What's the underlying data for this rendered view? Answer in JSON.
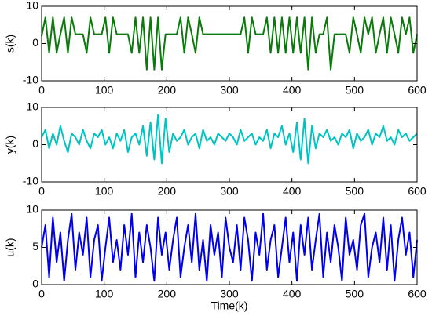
{
  "chart_data": [
    {
      "type": "line",
      "ylabel": "s(k)",
      "color": "#0a7a0a",
      "x": [
        0,
        6,
        12,
        18,
        24,
        30,
        36,
        42,
        48,
        54,
        60,
        66,
        72,
        78,
        84,
        90,
        96,
        102,
        108,
        114,
        120,
        126,
        132,
        138,
        144,
        150,
        156,
        162,
        168,
        174,
        180,
        186,
        192,
        198,
        204,
        210,
        216,
        222,
        228,
        234,
        240,
        246,
        252,
        258,
        264,
        270,
        276,
        282,
        288,
        294,
        300,
        306,
        312,
        318,
        324,
        330,
        336,
        342,
        348,
        354,
        360,
        366,
        372,
        378,
        384,
        390,
        396,
        402,
        408,
        414,
        420,
        426,
        432,
        438,
        444,
        450,
        456,
        462,
        468,
        474,
        480,
        486,
        492,
        498,
        504,
        510,
        516,
        522,
        528,
        534,
        540,
        546,
        552,
        558,
        564,
        570,
        576,
        582,
        588,
        594,
        600
      ],
      "values": [
        2,
        7,
        -2.5,
        7,
        -2.5,
        2.5,
        7,
        -2.5,
        7,
        2.5,
        2.5,
        2.5,
        -2.5,
        7,
        2.5,
        2.5,
        2.5,
        7,
        -2.5,
        7,
        2.5,
        2.5,
        2.5,
        2.5,
        -2.5,
        7,
        -2.5,
        7,
        -7,
        7,
        -7,
        7,
        -7,
        2.5,
        2.5,
        2.5,
        2.5,
        7,
        -2.5,
        7,
        2.5,
        -2.5,
        7,
        2.5,
        2.5,
        2.5,
        2.5,
        2.5,
        2.5,
        2.5,
        2.5,
        2.5,
        2.5,
        2.5,
        7,
        -2.5,
        7,
        2.5,
        2.5,
        2.5,
        7,
        -2.5,
        7,
        -2.5,
        7,
        -2.5,
        7,
        -2.5,
        7,
        -2.5,
        7,
        -7,
        7,
        -2.5,
        2.5,
        2.5,
        7,
        -7,
        2.5,
        2.5,
        2.5,
        2.5,
        -2.5,
        7,
        2.5,
        -2.5,
        7,
        2.5,
        7,
        -2.5,
        2.5,
        7,
        -2.5,
        7,
        2.5,
        -2.5,
        7,
        2.5,
        7,
        -2.5,
        2.5
      ],
      "xlim": [
        0,
        600
      ],
      "ylim": [
        -10,
        10
      ],
      "xticks": [
        0,
        100,
        200,
        300,
        400,
        500,
        600
      ],
      "yticks": [
        -10,
        0,
        10
      ]
    },
    {
      "type": "line",
      "ylabel": "y(k)",
      "color": "#00c4c4",
      "x": [
        0,
        6,
        12,
        18,
        24,
        30,
        36,
        42,
        48,
        54,
        60,
        66,
        72,
        78,
        84,
        90,
        96,
        102,
        108,
        114,
        120,
        126,
        132,
        138,
        144,
        150,
        156,
        162,
        168,
        174,
        180,
        186,
        192,
        198,
        204,
        210,
        216,
        222,
        228,
        234,
        240,
        246,
        252,
        258,
        264,
        270,
        276,
        282,
        288,
        294,
        300,
        306,
        312,
        318,
        324,
        330,
        336,
        342,
        348,
        354,
        360,
        366,
        372,
        378,
        384,
        390,
        396,
        402,
        408,
        414,
        420,
        426,
        432,
        438,
        444,
        450,
        456,
        462,
        468,
        474,
        480,
        486,
        492,
        498,
        504,
        510,
        516,
        522,
        528,
        534,
        540,
        546,
        552,
        558,
        564,
        570,
        576,
        582,
        588,
        594,
        600
      ],
      "values": [
        2,
        4,
        -1,
        3,
        0,
        5,
        1,
        -2,
        3,
        2,
        0,
        4,
        1,
        -1,
        3,
        2,
        4,
        0,
        2,
        -1,
        3,
        1,
        4,
        -2,
        2,
        3,
        0,
        5,
        -3,
        6,
        -4,
        8,
        -5,
        7,
        -2,
        3,
        1,
        2,
        4,
        0,
        2,
        3,
        -1,
        4,
        1,
        2,
        0,
        3,
        2,
        1,
        3,
        2,
        0,
        4,
        1,
        2,
        3,
        0,
        2,
        1,
        4,
        -1,
        3,
        2,
        5,
        0,
        3,
        -2,
        6,
        -4,
        7,
        -5,
        5,
        -1,
        3,
        2,
        4,
        1,
        2,
        0,
        3,
        2,
        4,
        -1,
        3,
        1,
        2,
        4,
        0,
        3,
        2,
        5,
        1,
        2,
        0,
        4,
        2,
        3,
        1,
        2,
        3
      ],
      "xlim": [
        0,
        600
      ],
      "ylim": [
        -10,
        10
      ],
      "xticks": [
        0,
        100,
        200,
        300,
        400,
        500,
        600
      ],
      "yticks": [
        -10,
        0,
        10
      ]
    },
    {
      "type": "line",
      "ylabel": "u(k)",
      "xlabel": "Time(k)",
      "color": "#0000ee",
      "x": [
        0,
        6,
        12,
        18,
        24,
        30,
        36,
        42,
        48,
        54,
        60,
        66,
        72,
        78,
        84,
        90,
        96,
        102,
        108,
        114,
        120,
        126,
        132,
        138,
        144,
        150,
        156,
        162,
        168,
        174,
        180,
        186,
        192,
        198,
        204,
        210,
        216,
        222,
        228,
        234,
        240,
        246,
        252,
        258,
        264,
        270,
        276,
        282,
        288,
        294,
        300,
        306,
        312,
        318,
        324,
        330,
        336,
        342,
        348,
        354,
        360,
        366,
        372,
        378,
        384,
        390,
        396,
        402,
        408,
        414,
        420,
        426,
        432,
        438,
        444,
        450,
        456,
        462,
        468,
        474,
        480,
        486,
        492,
        498,
        504,
        510,
        516,
        522,
        528,
        534,
        540,
        546,
        552,
        558,
        564,
        570,
        576,
        582,
        588,
        594,
        600
      ],
      "values": [
        5,
        8,
        1,
        9,
        3,
        7,
        0.5,
        6,
        9.5,
        2,
        7,
        4,
        9,
        1,
        6,
        8,
        0.5,
        5,
        9,
        3,
        6,
        2,
        8,
        4,
        9.5,
        1,
        7,
        3,
        8,
        5,
        0.5,
        9,
        4,
        7,
        2,
        6,
        9,
        1,
        5,
        8,
        3,
        9.5,
        2,
        6,
        0.5,
        8,
        4,
        7,
        1,
        9,
        5,
        3,
        8,
        2,
        9,
        6,
        0.5,
        7,
        4,
        9.5,
        2,
        6,
        8,
        1,
        5,
        9,
        3,
        7,
        0.5,
        8,
        4,
        9,
        2,
        6,
        9.5,
        1,
        7,
        3,
        8,
        5,
        0.5,
        9,
        4,
        6,
        2,
        8,
        9.5,
        1,
        5,
        7,
        3,
        9,
        2,
        8,
        0.5,
        6,
        9,
        4,
        7,
        1,
        6
      ],
      "xlim": [
        0,
        600
      ],
      "ylim": [
        0,
        10
      ],
      "xticks": [
        0,
        100,
        200,
        300,
        400,
        500,
        600
      ],
      "yticks": [
        0,
        5,
        10
      ]
    }
  ]
}
